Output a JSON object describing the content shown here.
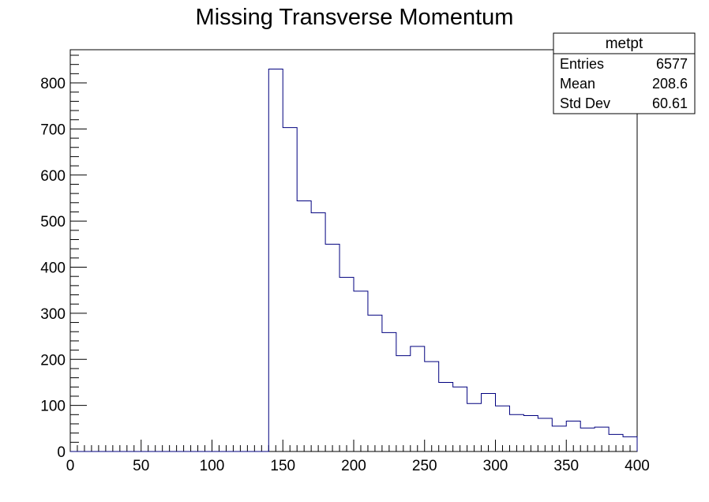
{
  "chart_data": {
    "type": "histogram",
    "title": "Missing Transverse Momentum",
    "xlabel": "",
    "ylabel": "",
    "xlim": [
      0,
      400
    ],
    "ylim": [
      0,
      872
    ],
    "grid": false,
    "legend": "none",
    "x_ticks": [
      0,
      50,
      100,
      150,
      200,
      250,
      300,
      350,
      400
    ],
    "y_ticks": [
      0,
      100,
      200,
      300,
      400,
      500,
      600,
      700,
      800
    ],
    "bin_width": 10,
    "bins": [
      {
        "low": 140,
        "high": 150,
        "count": 830
      },
      {
        "low": 150,
        "high": 160,
        "count": 703
      },
      {
        "low": 160,
        "high": 170,
        "count": 544
      },
      {
        "low": 170,
        "high": 180,
        "count": 518
      },
      {
        "low": 180,
        "high": 190,
        "count": 450
      },
      {
        "low": 190,
        "high": 200,
        "count": 378
      },
      {
        "low": 200,
        "high": 210,
        "count": 348
      },
      {
        "low": 210,
        "high": 220,
        "count": 296
      },
      {
        "low": 220,
        "high": 230,
        "count": 258
      },
      {
        "low": 230,
        "high": 240,
        "count": 208
      },
      {
        "low": 240,
        "high": 250,
        "count": 228
      },
      {
        "low": 250,
        "high": 260,
        "count": 195
      },
      {
        "low": 260,
        "high": 270,
        "count": 150
      },
      {
        "low": 270,
        "high": 280,
        "count": 140
      },
      {
        "low": 280,
        "high": 290,
        "count": 104
      },
      {
        "low": 290,
        "high": 300,
        "count": 126
      },
      {
        "low": 300,
        "high": 310,
        "count": 99
      },
      {
        "low": 310,
        "high": 320,
        "count": 80
      },
      {
        "low": 320,
        "high": 330,
        "count": 78
      },
      {
        "low": 330,
        "high": 340,
        "count": 72
      },
      {
        "low": 340,
        "high": 350,
        "count": 55
      },
      {
        "low": 350,
        "high": 360,
        "count": 66
      },
      {
        "low": 360,
        "high": 370,
        "count": 51
      },
      {
        "low": 370,
        "high": 380,
        "count": 53
      },
      {
        "low": 380,
        "high": 390,
        "count": 37
      },
      {
        "low": 390,
        "high": 400,
        "count": 32
      }
    ],
    "line_color": "#00007f",
    "stats_box": {
      "name": "metpt",
      "rows": [
        {
          "label": "Entries",
          "value": "6577"
        },
        {
          "label": "Mean",
          "value": "208.6"
        },
        {
          "label": "Std Dev",
          "value": "60.61"
        }
      ]
    }
  }
}
